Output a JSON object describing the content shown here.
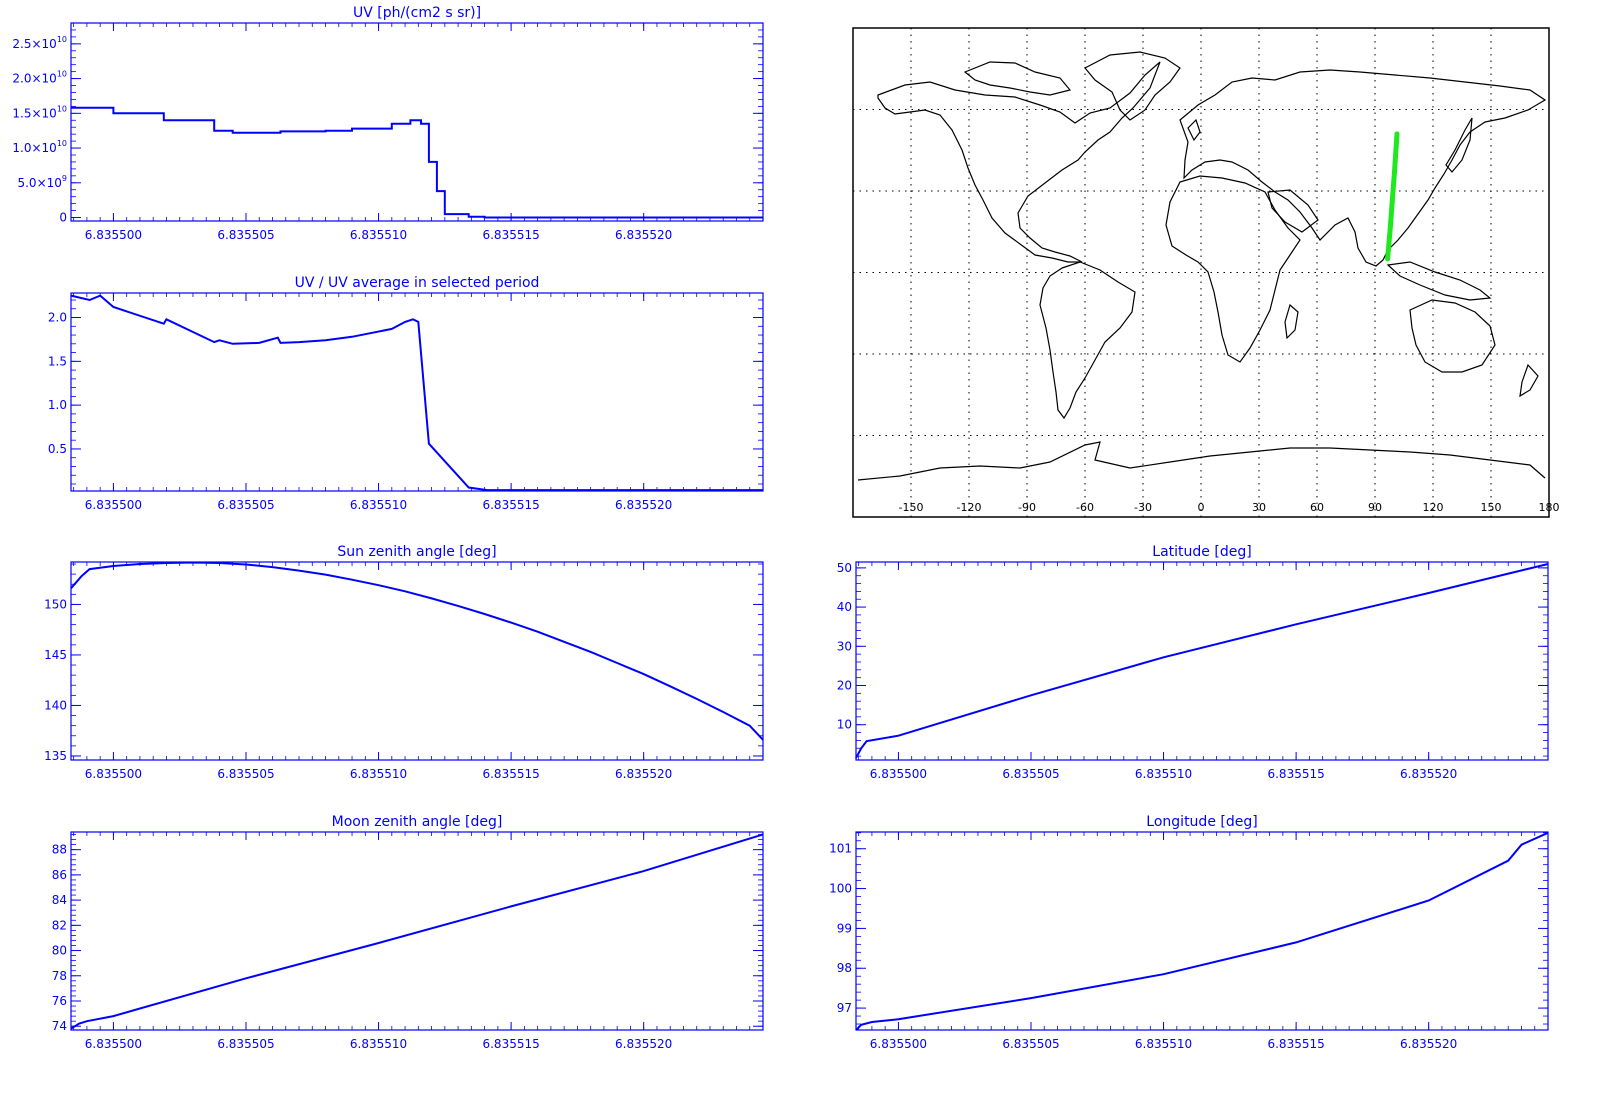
{
  "chart_data": [
    {
      "type": "line",
      "id": "uv",
      "title": "UV [ph/(cm2 s sr)]",
      "xlim": [
        6.8354984,
        6.8355245
      ],
      "ylim": [
        -500000000.0,
        28000000000.0
      ],
      "xticks": [
        6.8355,
        6.835505,
        6.83551,
        6.835515,
        6.83552
      ],
      "xtick_labels": [
        "6.835500",
        "6.835505",
        "6.835510",
        "6.835515",
        "6.835520"
      ],
      "yticks": [
        0,
        5000000000.0,
        10000000000.0,
        15000000000.0,
        20000000000.0,
        25000000000.0
      ],
      "ytick_labels": [
        {
          "mant": "0",
          "exp": ""
        },
        {
          "mant": "5.0×10",
          "exp": "9"
        },
        {
          "mant": "1.0×10",
          "exp": "10"
        },
        {
          "mant": "1.5×10",
          "exp": "10"
        },
        {
          "mant": "2.0×10",
          "exp": "10"
        },
        {
          "mant": "2.5×10",
          "exp": "10"
        }
      ],
      "series": [
        {
          "step": true,
          "x": [
            6.8354984,
            6.8355,
            6.8355019,
            6.8355038,
            6.8355045,
            6.8355055,
            6.8355063,
            6.835507,
            6.835508,
            6.835509,
            6.8355105,
            6.8355112,
            6.8355116,
            6.8355119,
            6.8355122,
            6.8355125,
            6.8355134,
            6.835514,
            6.835516,
            6.835518,
            6.835522,
            6.8355245
          ],
          "y": [
            15800000000.0,
            15000000000.0,
            14000000000.0,
            12500000000.0,
            12200000000.0,
            12200000000.0,
            12400000000.0,
            12400000000.0,
            12500000000.0,
            12800000000.0,
            13500000000.0,
            14000000000.0,
            13500000000.0,
            8000000000.0,
            3800000000.0,
            500000000.0,
            100000000.0,
            0,
            0,
            0,
            0,
            0
          ]
        }
      ]
    },
    {
      "type": "line",
      "id": "uv-ratio",
      "title": "UV / UV average in selected period",
      "xlim": [
        6.8354984,
        6.8355245
      ],
      "ylim": [
        0.02,
        2.28
      ],
      "xticks": [
        6.8355,
        6.835505,
        6.83551,
        6.835515,
        6.83552
      ],
      "xtick_labels": [
        "6.835500",
        "6.835505",
        "6.835510",
        "6.835515",
        "6.835520"
      ],
      "yticks": [
        0.5,
        1.0,
        1.5,
        2.0
      ],
      "ytick_labels": [
        "0.5",
        "1.0",
        "1.5",
        "2.0"
      ],
      "series": [
        {
          "x": [
            6.8354984,
            6.8354991,
            6.8354995,
            6.8355,
            6.8355019,
            6.835502,
            6.8355038,
            6.835504,
            6.8355045,
            6.8355055,
            6.8355062,
            6.8355063,
            6.835507,
            6.835508,
            6.835509,
            6.8355105,
            6.835511,
            6.8355113,
            6.8355115,
            6.8355119,
            6.8355134,
            6.8355141,
            6.835516,
            6.835518,
            6.835522,
            6.8355245
          ],
          "y": [
            2.25,
            2.2,
            2.25,
            2.12,
            1.93,
            1.98,
            1.72,
            1.74,
            1.7,
            1.71,
            1.77,
            1.71,
            1.72,
            1.74,
            1.78,
            1.87,
            1.95,
            1.98,
            1.95,
            0.56,
            0.06,
            0.03,
            0.03,
            0.03,
            0.03,
            0.03
          ]
        }
      ]
    },
    {
      "type": "line",
      "id": "sun-zenith",
      "title": "Sun zenith angle [deg]",
      "xlim": [
        6.8354984,
        6.8355245
      ],
      "ylim": [
        134.6,
        154.2
      ],
      "xticks": [
        6.8355,
        6.835505,
        6.83551,
        6.835515,
        6.83552
      ],
      "xtick_labels": [
        "6.835500",
        "6.835505",
        "6.835510",
        "6.835515",
        "6.835520"
      ],
      "yticks": [
        135,
        140,
        145,
        150
      ],
      "ytick_labels": [
        "135",
        "140",
        "145",
        "150"
      ],
      "series": [
        {
          "x": [
            6.8354984,
            6.8354988,
            6.8354991,
            6.8355,
            6.835501,
            6.835502,
            6.835503,
            6.835504,
            6.835505,
            6.835506,
            6.835507,
            6.835508,
            6.835509,
            6.83551,
            6.835511,
            6.835512,
            6.835513,
            6.835514,
            6.835515,
            6.835516,
            6.835517,
            6.835518,
            6.835519,
            6.83552,
            6.835521,
            6.835522,
            6.835523,
            6.835524,
            6.8355245
          ],
          "y": [
            151.6,
            152.8,
            153.5,
            153.8,
            154.0,
            154.1,
            154.15,
            154.1,
            153.95,
            153.7,
            153.35,
            152.95,
            152.45,
            151.9,
            151.3,
            150.6,
            149.85,
            149.05,
            148.2,
            147.3,
            146.3,
            145.3,
            144.2,
            143.1,
            141.9,
            140.65,
            139.35,
            138.0,
            136.6
          ]
        }
      ]
    },
    {
      "type": "line",
      "id": "latitude",
      "title": "Latitude [deg]",
      "xlim": [
        6.8354984,
        6.8355245
      ],
      "ylim": [
        1.0,
        51.5
      ],
      "xticks": [
        6.8355,
        6.835505,
        6.83551,
        6.835515,
        6.83552
      ],
      "xtick_labels": [
        "6.835500",
        "6.835505",
        "6.835510",
        "6.835515",
        "6.835520"
      ],
      "yticks": [
        10,
        20,
        30,
        40,
        50
      ],
      "ytick_labels": [
        "10",
        "20",
        "30",
        "40",
        "50"
      ],
      "series": [
        {
          "x": [
            6.8354984,
            6.8354986,
            6.8354988,
            6.8355,
            6.835505,
            6.83551,
            6.835515,
            6.83552,
            6.8355245
          ],
          "y": [
            1.5,
            4.0,
            5.8,
            7.2,
            17.5,
            27.2,
            35.6,
            43.6,
            51.0
          ]
        }
      ]
    },
    {
      "type": "line",
      "id": "moon-zenith",
      "title": "Moon zenith angle [deg]",
      "xlim": [
        6.8354984,
        6.8355245
      ],
      "ylim": [
        73.7,
        89.4
      ],
      "xticks": [
        6.8355,
        6.835505,
        6.83551,
        6.835515,
        6.83552
      ],
      "xtick_labels": [
        "6.835500",
        "6.835505",
        "6.835510",
        "6.835515",
        "6.835520"
      ],
      "yticks": [
        74,
        76,
        78,
        80,
        82,
        84,
        86,
        88
      ],
      "ytick_labels": [
        "74",
        "76",
        "78",
        "80",
        "82",
        "84",
        "86",
        "88"
      ],
      "series": [
        {
          "x": [
            6.8354984,
            6.8354987,
            6.835499,
            6.8355,
            6.835505,
            6.83551,
            6.835515,
            6.83552,
            6.8355245
          ],
          "y": [
            73.8,
            74.2,
            74.4,
            74.8,
            77.8,
            80.6,
            83.5,
            86.3,
            89.2
          ]
        }
      ]
    },
    {
      "type": "line",
      "id": "longitude",
      "title": "Longitude [deg]",
      "xlim": [
        6.8354984,
        6.8355245
      ],
      "ylim": [
        96.45,
        101.42
      ],
      "xticks": [
        6.8355,
        6.835505,
        6.83551,
        6.835515,
        6.83552
      ],
      "xtick_labels": [
        "6.835500",
        "6.835505",
        "6.835510",
        "6.835515",
        "6.835520"
      ],
      "yticks": [
        97,
        98,
        99,
        100,
        101
      ],
      "ytick_labels": [
        "97",
        "98",
        "99",
        "100",
        "101"
      ],
      "series": [
        {
          "x": [
            6.8354984,
            6.8354986,
            6.835499,
            6.8355,
            6.835505,
            6.83551,
            6.835515,
            6.83552,
            6.835523,
            6.8355235,
            6.8355245
          ],
          "y": [
            96.45,
            96.58,
            96.65,
            96.72,
            97.25,
            97.85,
            98.65,
            99.7,
            100.7,
            101.1,
            101.4
          ]
        }
      ]
    }
  ],
  "map": {
    "xlim": [
      -180,
      180
    ],
    "ylim": [
      -90,
      90
    ],
    "xticks": [
      -150,
      -120,
      -90,
      -60,
      -30,
      0,
      30,
      60,
      90,
      120,
      150,
      180
    ],
    "xtick_labels": [
      "-150",
      "-120",
      "-90",
      "-60",
      "-30",
      "0",
      "30",
      "60",
      "90",
      "120",
      "150",
      "180"
    ],
    "grid_lon": [
      -150,
      -120,
      -90,
      -60,
      -30,
      0,
      30,
      60,
      90,
      120,
      150
    ],
    "grid_lat": [
      -60,
      -30,
      0,
      30,
      60
    ],
    "track_color": "#1ee81e",
    "track": {
      "lon": [
        96.5,
        98.0,
        99.0,
        100.0,
        101.4
      ],
      "lat": [
        5.0,
        17.5,
        27.0,
        36.0,
        51.0
      ]
    }
  },
  "colors": {
    "line": "#0000ff",
    "axis": "#0000ff",
    "map_outline": "#000000"
  }
}
